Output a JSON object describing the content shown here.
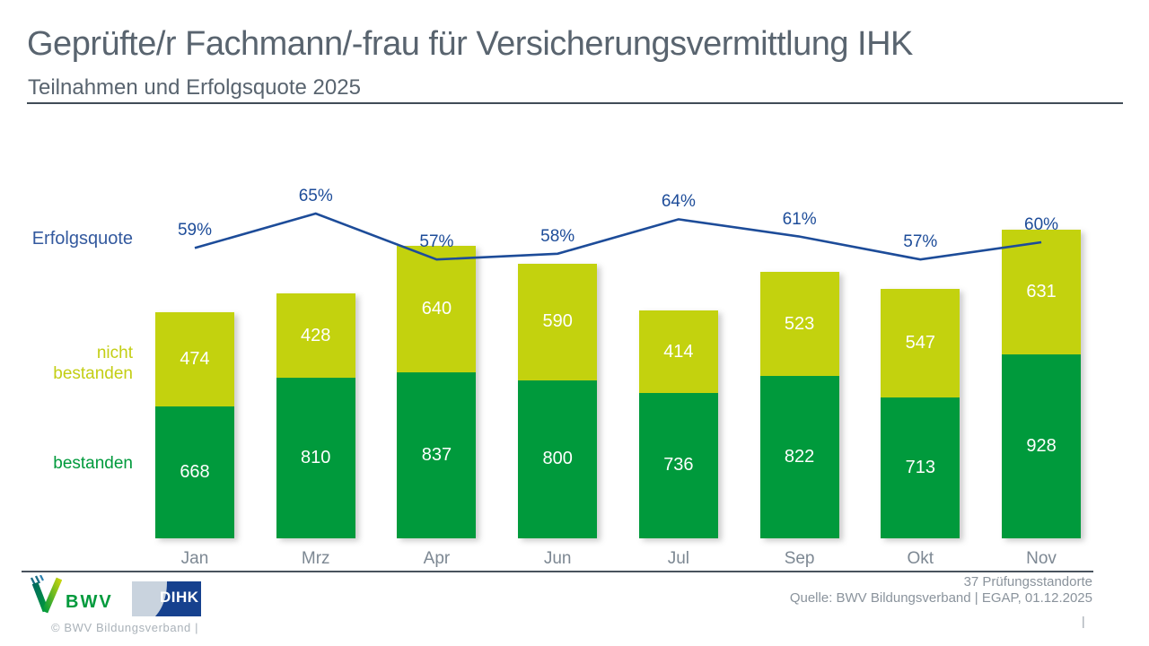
{
  "slide": {
    "title": "Geprüfte/r Fachmann/-frau für Versicherungsvermittlung IHK",
    "subtitle": "Teilnahmen und Erfolgsquote 2025"
  },
  "chart_data": {
    "type": "bar",
    "stacked": true,
    "title": "Geprüfte/r Fachmann/-frau für Versicherungsvermittlung IHK – Teilnahmen und Erfolgsquote 2025",
    "categories": [
      "Jan",
      "Mrz",
      "Apr",
      "Jun",
      "Jul",
      "Sep",
      "Okt",
      "Nov"
    ],
    "series": [
      {
        "name": "bestanden",
        "color": "#009a3c",
        "values": [
          668,
          810,
          837,
          800,
          736,
          822,
          713,
          928
        ]
      },
      {
        "name": "nicht bestanden",
        "color": "#c3d20e",
        "values": [
          474,
          428,
          640,
          590,
          414,
          523,
          547,
          631
        ]
      }
    ],
    "line_series": {
      "name": "Erfolgsquote",
      "color": "#1d4c99",
      "unit": "%",
      "values": [
        59,
        65,
        57,
        58,
        64,
        61,
        57,
        60
      ]
    },
    "xlabel": "",
    "ylabel": "",
    "grid": false,
    "legend_position": "left"
  },
  "labels": {
    "erfolgsquote": "Erfolgsquote",
    "nicht_line1": "nicht",
    "nicht_line2": "bestanden",
    "bestanden": "bestanden"
  },
  "footer": {
    "standorte": "37 Prüfungsstandorte",
    "quelle": "Quelle: BWV Bildungsverband | EGAP, 01.12.2025",
    "copyright": "©  BWV Bildungsverband  |",
    "page_separator": "|",
    "bwv_label": "BWV",
    "dihk_label": "DIHK"
  },
  "colors": {
    "bestanden": "#009a3c",
    "nicht_bestanden": "#c3d20e",
    "line": "#1d4c99",
    "title_text": "#59646f",
    "axis_text": "#7d8893"
  }
}
